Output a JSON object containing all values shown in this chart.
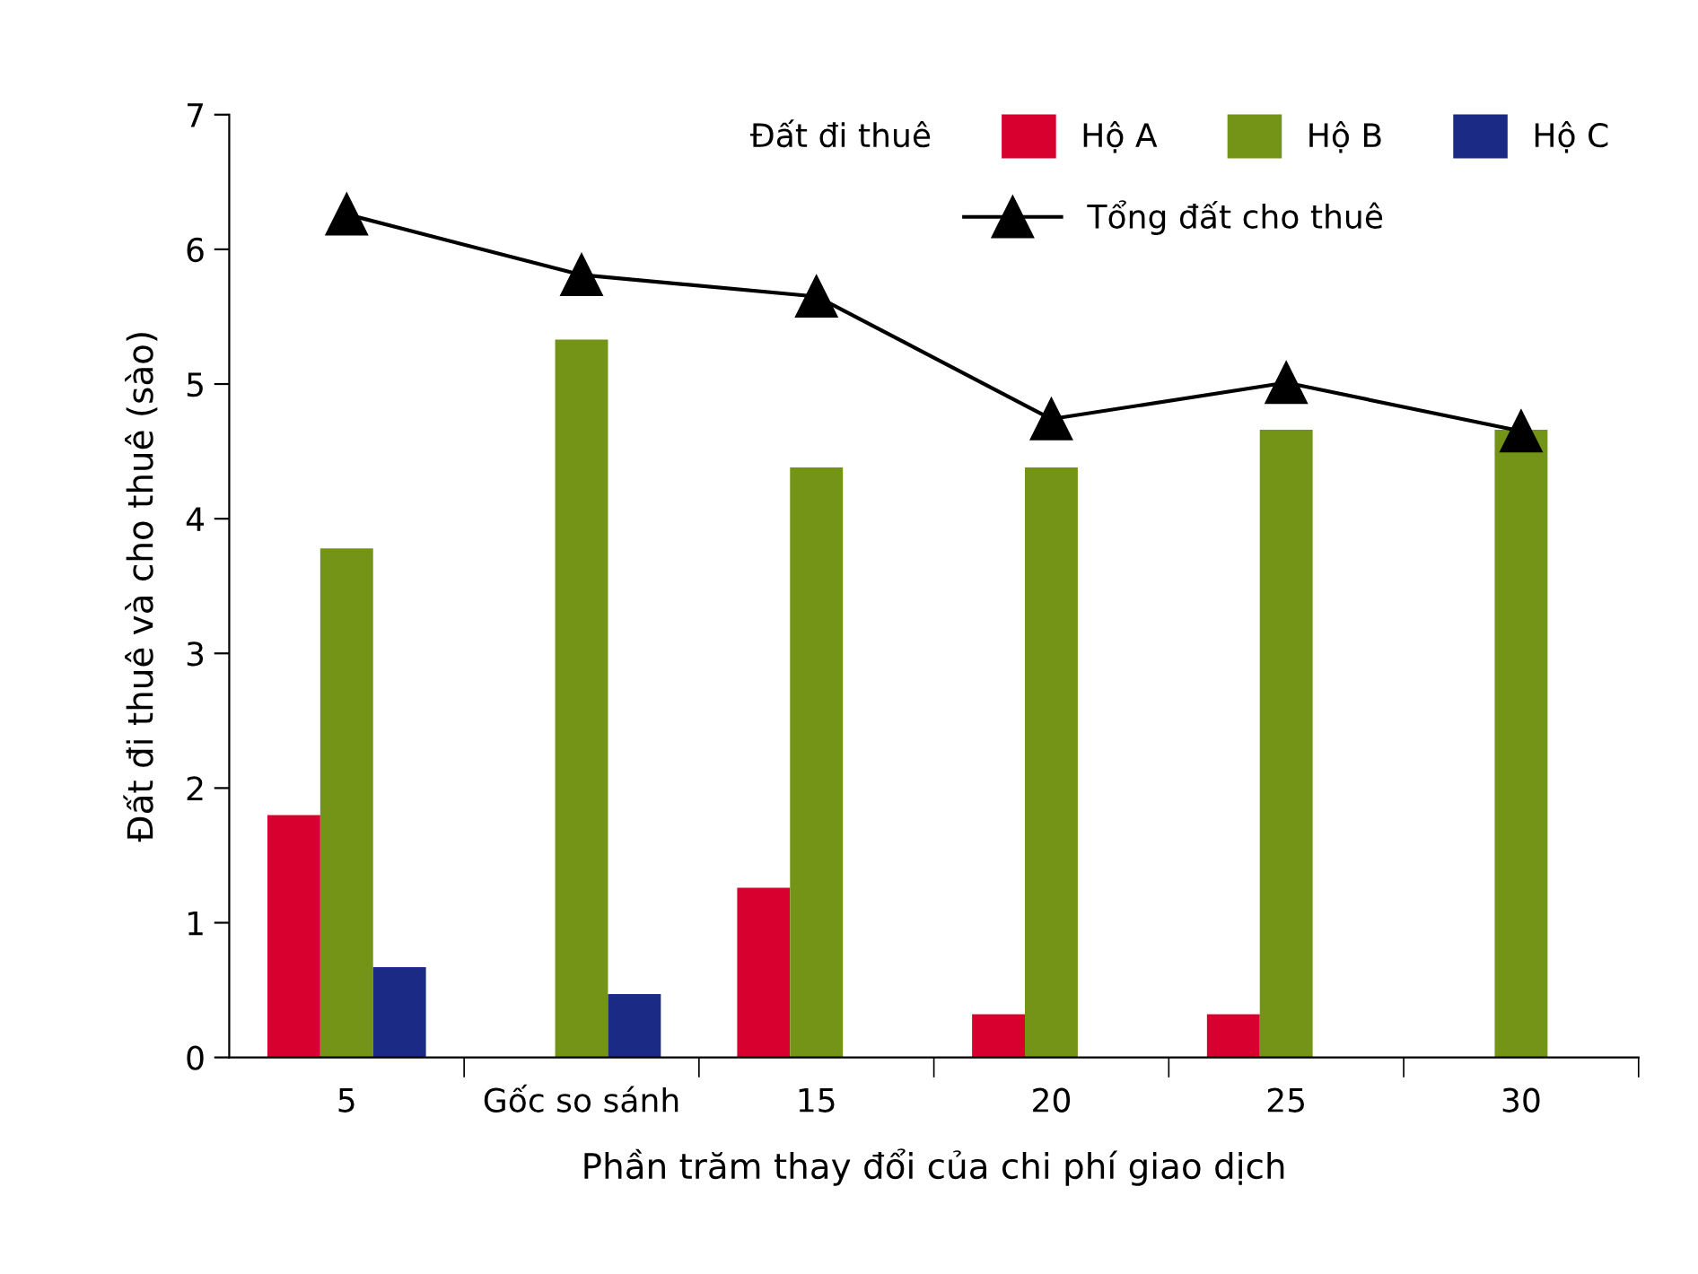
{
  "chart_data": {
    "type": "bar",
    "xlabel": "Phần trăm thay đổi của chi phí giao dịch",
    "ylabel": "Đất đi thuê và cho thuê (sào)",
    "categories": [
      "5",
      "Gốc so sánh",
      "15",
      "20",
      "25",
      "30"
    ],
    "legend_title": "Đất đi thuê",
    "legend": "top right",
    "grid": false,
    "ylim": [
      0,
      7
    ],
    "yticks": [
      0,
      1,
      2,
      3,
      4,
      5,
      6,
      7
    ],
    "series": [
      {
        "name": "Hộ A",
        "color": "#d7002f",
        "values": [
          1.8,
          null,
          1.26,
          0.32,
          0.32,
          null
        ]
      },
      {
        "name": "Hộ B",
        "color": "#739417",
        "values": [
          3.78,
          5.33,
          4.38,
          4.38,
          4.66,
          4.66
        ]
      },
      {
        "name": "Hộ C",
        "color": "#1a2a85",
        "values": [
          0.67,
          0.47,
          null,
          null,
          null,
          null
        ]
      },
      {
        "name": "Tổng đất cho thuê",
        "type": "line",
        "color": "#000000",
        "marker": "triangle",
        "values": [
          6.26,
          5.81,
          5.65,
          4.74,
          5.01,
          4.65
        ]
      }
    ]
  }
}
